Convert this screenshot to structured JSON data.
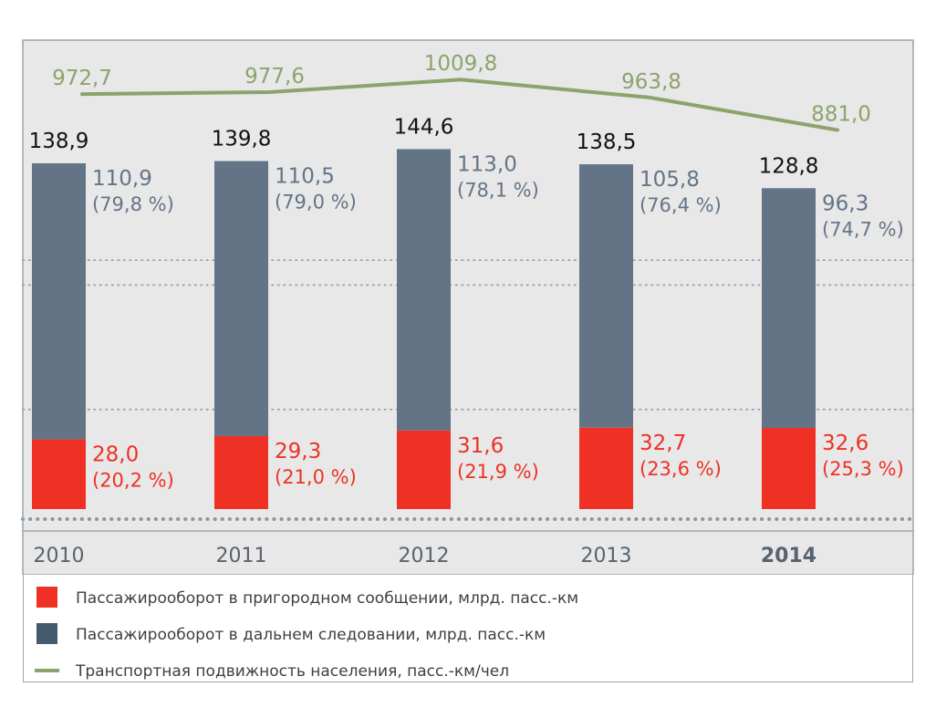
{
  "chart_data": {
    "type": "bar",
    "stacked": true,
    "categories": [
      "2010",
      "2011",
      "2012",
      "2013",
      "2014"
    ],
    "highlight_category": "2014",
    "series": [
      {
        "name": "Пассажирооборот в пригородном сообщении, млрд. пасс.-км",
        "values": [
          28.0,
          29.3,
          31.6,
          32.7,
          32.6
        ],
        "value_labels": [
          "28,0",
          "29,3",
          "31,6",
          "32,7",
          "32,6"
        ],
        "share_labels": [
          "(20,2 %)",
          "(21,0 %)",
          "(21,9 %)",
          "(23,6 %)",
          "(25,3 %)"
        ],
        "color": "#ee3124"
      },
      {
        "name": "Пассажирооборот в дальнем следовании, млрд. пасс.-км",
        "values": [
          110.9,
          110.5,
          113.0,
          105.8,
          96.3
        ],
        "value_labels": [
          "110,9",
          "110,5",
          "113,0",
          "105,8",
          "96,3"
        ],
        "share_labels": [
          "(79,8 %)",
          "(79,0 %)",
          "(78,1 %)",
          "(76,4 %)",
          "(74,7 %)"
        ],
        "color": "#647487",
        "legend_color": "#455a6e"
      }
    ],
    "totals": [
      138.9,
      139.8,
      144.6,
      138.5,
      128.8
    ],
    "total_labels": [
      "138,9",
      "139,8",
      "144,6",
      "138,5",
      "128,8"
    ],
    "line_series": {
      "name": "Транспортная подвижность населения, пасс.-км/чел",
      "values": [
        972.7,
        977.6,
        1009.8,
        963.8,
        881.0
      ],
      "value_labels": [
        "972,7",
        "977,6",
        "1009,8",
        "963,8",
        "881,0"
      ],
      "color": "#8ca36d"
    },
    "grid": true,
    "legend_position": "bottom",
    "colors": {
      "plot_background": "#e8e8e8",
      "grid": "#909aa4",
      "axis_text": "#57636f"
    }
  }
}
